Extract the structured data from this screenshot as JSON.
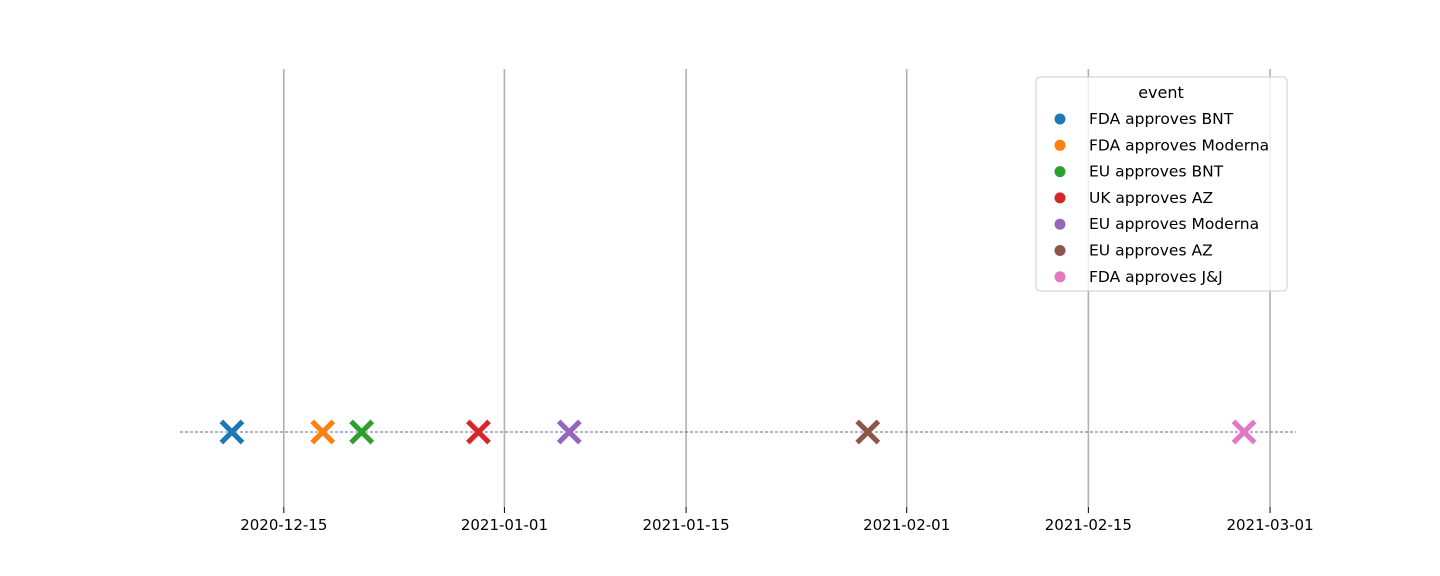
{
  "chart_data": {
    "type": "scatter",
    "title": "",
    "xlabel": "",
    "ylabel": "",
    "x_axis_type": "date",
    "xlim": [
      "2020-12-07",
      "2021-03-03"
    ],
    "x_ticks": [
      "2020-12-15",
      "2021-01-01",
      "2021-01-15",
      "2021-02-01",
      "2021-02-15",
      "2021-03-01"
    ],
    "grid": "vertical",
    "y_axis_visible": false,
    "marker": "x-filled",
    "reference_line": {
      "style": "dashed",
      "color": "#6a5acd"
    },
    "legend": {
      "title": "event",
      "placement": "top-right"
    },
    "series": [
      {
        "name": "FDA approves BNT",
        "date": "2020-12-11",
        "color": "#1f77b4"
      },
      {
        "name": "FDA approves Moderna",
        "date": "2020-12-18",
        "color": "#ff7f0e"
      },
      {
        "name": "EU approves BNT",
        "date": "2020-12-21",
        "color": "#2ca02c"
      },
      {
        "name": "UK approves AZ",
        "date": "2020-12-30",
        "color": "#d62728"
      },
      {
        "name": "EU approves Moderna",
        "date": "2021-01-06",
        "color": "#9467bd"
      },
      {
        "name": "EU approves AZ",
        "date": "2021-01-29",
        "color": "#8c564b"
      },
      {
        "name": "FDA approves J&J",
        "date": "2021-02-27",
        "color": "#e377c2"
      }
    ]
  }
}
